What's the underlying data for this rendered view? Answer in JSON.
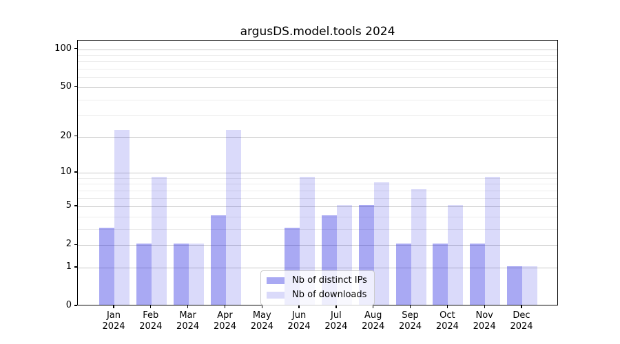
{
  "chart_data": {
    "type": "bar",
    "title": "argusDS.model.tools 2024",
    "categories": [
      "Jan",
      "Feb",
      "Mar",
      "Apr",
      "May",
      "Jun",
      "Jul",
      "Aug",
      "Sep",
      "Oct",
      "Nov",
      "Dec"
    ],
    "x_year_label": "2024",
    "series": [
      {
        "key": "distinct-ips",
        "name": "Nb of distinct IPs",
        "color": "rgba(8,8,220,0.35)",
        "values": [
          3,
          2,
          2,
          4,
          0,
          3,
          4,
          5,
          2,
          2,
          2,
          1
        ]
      },
      {
        "key": "downloads",
        "name": "Nb of downloads",
        "color": "rgba(8,8,220,0.15)",
        "values": [
          22,
          9,
          2,
          22,
          0,
          9,
          5,
          8,
          7,
          5,
          9,
          1
        ]
      }
    ],
    "yscale": "log1p",
    "ylim": [
      0,
      117
    ],
    "yticks": [
      0,
      1,
      2,
      5,
      10,
      20,
      50,
      100
    ],
    "minor_grid_values": [
      3,
      4,
      6,
      7,
      8,
      9,
      30,
      40,
      60,
      70,
      80,
      90
    ],
    "grid": true,
    "legend_position": "lower center",
    "colors": {
      "bar_base": "#0808dc",
      "major_grid": "#c9c9c9",
      "minor_grid": "#ececec",
      "axis": "#000000"
    }
  }
}
